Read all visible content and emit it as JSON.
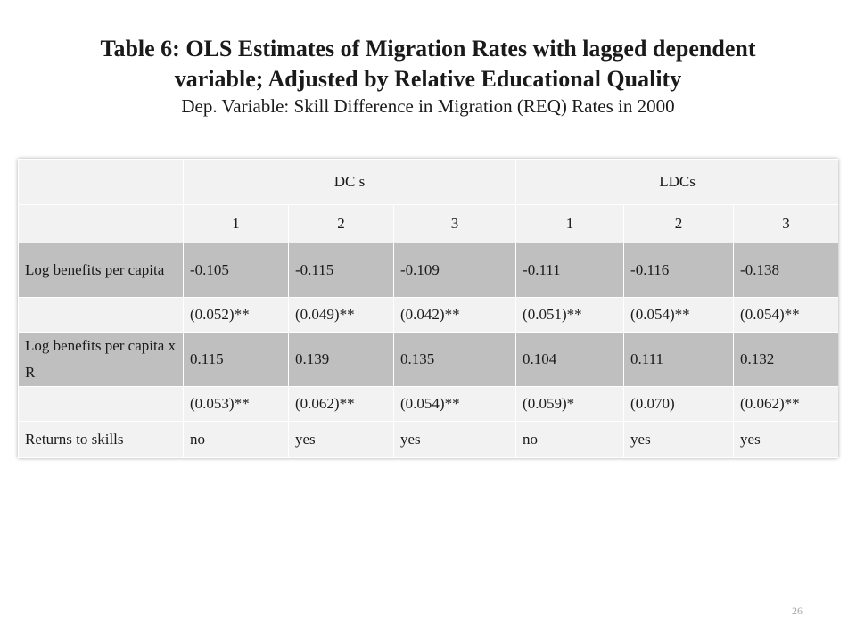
{
  "title": {
    "line1": "Table 6: OLS Estimates of Migration Rates with lagged dependent",
    "line2": "variable; Adjusted by Relative Educational Quality",
    "subtitle": "Dep. Variable: Skill Difference in Migration (REQ) Rates in 2000"
  },
  "table": {
    "groups": [
      "DC s",
      "LDCs"
    ],
    "columns": [
      "1",
      "2",
      "3",
      "1",
      "2",
      "3"
    ],
    "rows": [
      {
        "label": "Log benefits per capita",
        "values": [
          "-0.105",
          "-0.115",
          "-0.109",
          "-0.111",
          "-0.116",
          "-0.138"
        ]
      },
      {
        "label": "",
        "values": [
          "(0.052)**",
          "(0.049)**",
          "(0.042)**",
          "(0.051)**",
          "(0.054)**",
          "(0.054)**"
        ]
      },
      {
        "label": "Log benefits per capita  x R",
        "values": [
          "0.115",
          "0.139",
          "0.135",
          "0.104",
          "0.111",
          "0.132"
        ]
      },
      {
        "label": "",
        "values": [
          "(0.053)**",
          "(0.062)**",
          "(0.054)**",
          "(0.059)*",
          "(0.070)",
          "(0.062)**"
        ]
      },
      {
        "label": "Returns to skills",
        "values": [
          "no",
          "yes",
          "yes",
          "no",
          "yes",
          "yes"
        ]
      }
    ]
  },
  "page_number": "26"
}
